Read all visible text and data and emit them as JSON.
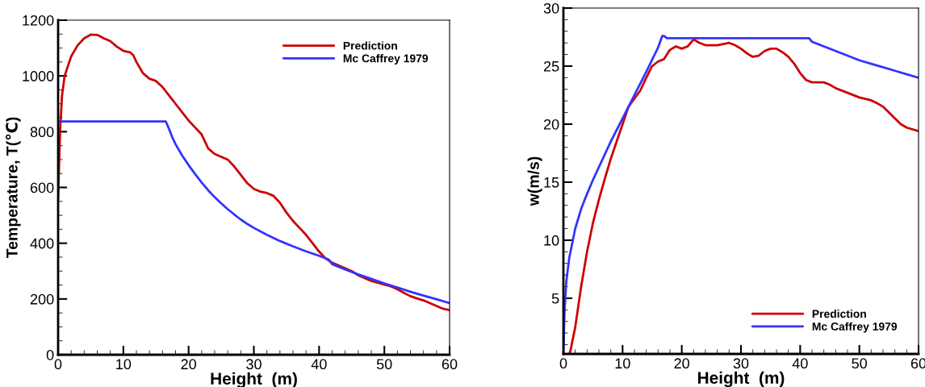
{
  "chart_data": [
    {
      "type": "line",
      "xlabel": "Height  (m)",
      "ylabel": "Temperature, T(℃)",
      "legend": "top right",
      "grid": false,
      "xlim": [
        0,
        60
      ],
      "ylim": [
        0,
        1200
      ],
      "xticks": [
        0,
        {
          "value": 2,
          "label": null
        },
        {
          "value": 4,
          "label": null
        },
        {
          "value": 6,
          "label": null
        },
        {
          "value": 8,
          "label": null
        },
        10,
        {
          "value": 12,
          "label": null
        },
        {
          "value": 14,
          "label": null
        },
        {
          "value": 16,
          "label": null
        },
        {
          "value": 18,
          "label": null
        },
        20,
        {
          "value": 22,
          "label": null
        },
        {
          "value": 24,
          "label": null
        },
        {
          "value": 26,
          "label": null
        },
        {
          "value": 28,
          "label": null
        },
        30,
        {
          "value": 32,
          "label": null
        },
        {
          "value": 34,
          "label": null
        },
        {
          "value": 36,
          "label": null
        },
        {
          "value": 38,
          "label": null
        },
        40,
        {
          "value": 42,
          "label": null
        },
        {
          "value": 44,
          "label": null
        },
        {
          "value": 46,
          "label": null
        },
        {
          "value": 48,
          "label": null
        },
        50,
        {
          "value": 52,
          "label": null
        },
        {
          "value": 54,
          "label": null
        },
        {
          "value": 56,
          "label": null
        },
        {
          "value": 58,
          "label": null
        },
        60
      ],
      "yticks": [
        0,
        {
          "value": 50,
          "label": null
        },
        {
          "value": 100,
          "label": null
        },
        {
          "value": 150,
          "label": null
        },
        200,
        {
          "value": 250,
          "label": null
        },
        {
          "value": 300,
          "label": null
        },
        {
          "value": 350,
          "label": null
        },
        400,
        {
          "value": 450,
          "label": null
        },
        {
          "value": 500,
          "label": null
        },
        {
          "value": 550,
          "label": null
        },
        600,
        {
          "value": 650,
          "label": null
        },
        {
          "value": 700,
          "label": null
        },
        {
          "value": 750,
          "label": null
        },
        800,
        {
          "value": 850,
          "label": null
        },
        {
          "value": 900,
          "label": null
        },
        {
          "value": 950,
          "label": null
        },
        1000,
        {
          "value": 1050,
          "label": null
        },
        {
          "value": 1100,
          "label": null
        },
        {
          "value": 1150,
          "label": null
        },
        1200
      ],
      "series": [
        {
          "name": "Prediction",
          "color": "#cc0000",
          "x": [
            0,
            0.3,
            0.6,
            1,
            2,
            3,
            4,
            5,
            6,
            7,
            8,
            9,
            10,
            11,
            11.5,
            12,
            13,
            14,
            15,
            16,
            17,
            18,
            19,
            20,
            21,
            22,
            23,
            24,
            25,
            26,
            27,
            28,
            29,
            30,
            31,
            32,
            33,
            34,
            35,
            36,
            37,
            38,
            39,
            40,
            41,
            42,
            43,
            44,
            45,
            46,
            47,
            48,
            49,
            50,
            51,
            52,
            53,
            54,
            55,
            56,
            57,
            58,
            59,
            60
          ],
          "values": [
            560,
            800,
            930,
            1000,
            1070,
            1110,
            1135,
            1148,
            1147,
            1135,
            1125,
            1105,
            1090,
            1085,
            1075,
            1050,
            1010,
            990,
            982,
            960,
            930,
            900,
            870,
            840,
            815,
            790,
            740,
            720,
            710,
            700,
            675,
            645,
            615,
            595,
            585,
            580,
            570,
            545,
            510,
            480,
            455,
            430,
            400,
            370,
            345,
            330,
            320,
            310,
            300,
            285,
            275,
            265,
            258,
            252,
            245,
            235,
            222,
            210,
            202,
            195,
            185,
            175,
            165,
            160
          ]
        },
        {
          "name": "Mc Caffrey 1979",
          "color": "#3333ff",
          "x": [
            0,
            16.5,
            17,
            17.5,
            18,
            19,
            20,
            21,
            22,
            23,
            24,
            25,
            26,
            27,
            28,
            29,
            30,
            32,
            34,
            36,
            38,
            40,
            41.5,
            42,
            44,
            46,
            48,
            50,
            52,
            54,
            56,
            58,
            60
          ],
          "values": [
            837,
            837,
            810,
            780,
            755,
            715,
            680,
            648,
            618,
            590,
            565,
            543,
            522,
            503,
            485,
            469,
            455,
            430,
            408,
            389,
            371,
            355,
            341,
            325,
            306,
            288,
            272,
            256,
            241,
            226,
            212,
            199,
            185
          ]
        }
      ]
    },
    {
      "type": "line",
      "xlabel": "Height  (m)",
      "ylabel": "w(m/s)",
      "legend": "bottom right",
      "grid": false,
      "xlim": [
        0,
        60
      ],
      "ylim": [
        0.2,
        30
      ],
      "xticks": [
        0,
        {
          "value": 2,
          "label": null
        },
        {
          "value": 4,
          "label": null
        },
        {
          "value": 6,
          "label": null
        },
        {
          "value": 8,
          "label": null
        },
        10,
        {
          "value": 12,
          "label": null
        },
        {
          "value": 14,
          "label": null
        },
        {
          "value": 16,
          "label": null
        },
        {
          "value": 18,
          "label": null
        },
        20,
        {
          "value": 22,
          "label": null
        },
        {
          "value": 24,
          "label": null
        },
        {
          "value": 26,
          "label": null
        },
        {
          "value": 28,
          "label": null
        },
        30,
        {
          "value": 32,
          "label": null
        },
        {
          "value": 34,
          "label": null
        },
        {
          "value": 36,
          "label": null
        },
        {
          "value": 38,
          "label": null
        },
        40,
        {
          "value": 42,
          "label": null
        },
        {
          "value": 44,
          "label": null
        },
        {
          "value": 46,
          "label": null
        },
        {
          "value": 48,
          "label": null
        },
        50,
        {
          "value": 52,
          "label": null
        },
        {
          "value": 54,
          "label": null
        },
        {
          "value": 56,
          "label": null
        },
        {
          "value": 58,
          "label": null
        },
        60
      ],
      "yticks": [
        {
          "value": 1,
          "label": null
        },
        {
          "value": 2,
          "label": null
        },
        {
          "value": 3,
          "label": null
        },
        {
          "value": 4,
          "label": null
        },
        5,
        {
          "value": 6,
          "label": null
        },
        {
          "value": 7,
          "label": null
        },
        {
          "value": 8,
          "label": null
        },
        {
          "value": 9,
          "label": null
        },
        10,
        {
          "value": 11,
          "label": null
        },
        {
          "value": 12,
          "label": null
        },
        {
          "value": 13,
          "label": null
        },
        {
          "value": 14,
          "label": null
        },
        15,
        {
          "value": 16,
          "label": null
        },
        {
          "value": 17,
          "label": null
        },
        {
          "value": 18,
          "label": null
        },
        {
          "value": 19,
          "label": null
        },
        20,
        {
          "value": 21,
          "label": null
        },
        {
          "value": 22,
          "label": null
        },
        {
          "value": 23,
          "label": null
        },
        {
          "value": 24,
          "label": null
        },
        25,
        {
          "value": 26,
          "label": null
        },
        {
          "value": 27,
          "label": null
        },
        {
          "value": 28,
          "label": null
        },
        {
          "value": 29,
          "label": null
        },
        30
      ],
      "series": [
        {
          "name": "Prediction",
          "color": "#cc0000",
          "x": [
            1,
            1.2,
            2,
            3,
            4,
            5,
            6,
            7,
            8,
            9,
            10,
            11,
            12,
            13,
            14,
            15,
            16,
            17,
            18,
            19,
            20,
            21,
            22,
            23,
            24,
            26,
            28,
            29,
            30,
            31,
            32,
            33,
            34,
            35,
            36,
            37,
            38,
            39,
            40,
            41,
            42,
            44,
            45,
            46,
            48,
            50,
            52,
            53,
            54,
            55,
            56,
            57,
            58,
            60
          ],
          "values": [
            0.2,
            0.5,
            2.5,
            6,
            9,
            11.5,
            13.5,
            15.3,
            17,
            18.5,
            20,
            21.5,
            22.2,
            22.9,
            24,
            25,
            25.4,
            25.6,
            26.4,
            26.7,
            26.5,
            26.7,
            27.3,
            27,
            26.8,
            26.8,
            27,
            26.8,
            26.5,
            26.1,
            25.8,
            25.9,
            26.3,
            26.5,
            26.5,
            26.2,
            25.8,
            25.2,
            24.4,
            23.8,
            23.6,
            23.6,
            23.4,
            23.1,
            22.7,
            22.3,
            22.05,
            21.8,
            21.5,
            21,
            20.5,
            20,
            19.7,
            19.4
          ]
        },
        {
          "name": "Mc Caffrey 1979",
          "color": "#3333ff",
          "x": [
            0,
            0.2,
            0.5,
            1,
            2,
            3,
            4,
            5,
            6,
            8,
            10,
            12,
            14,
            16,
            16.7,
            17,
            17.5,
            41.5,
            42,
            44,
            46,
            48,
            50,
            52,
            54,
            56,
            58,
            60
          ],
          "values": [
            0.3,
            4,
            6.5,
            8.5,
            11,
            12.7,
            14,
            15.2,
            16.3,
            18.5,
            20.5,
            22.5,
            24.5,
            26.6,
            27.6,
            27.6,
            27.4,
            27.4,
            27.1,
            26.7,
            26.3,
            25.9,
            25.5,
            25.2,
            24.9,
            24.6,
            24.3,
            24
          ]
        }
      ]
    }
  ]
}
